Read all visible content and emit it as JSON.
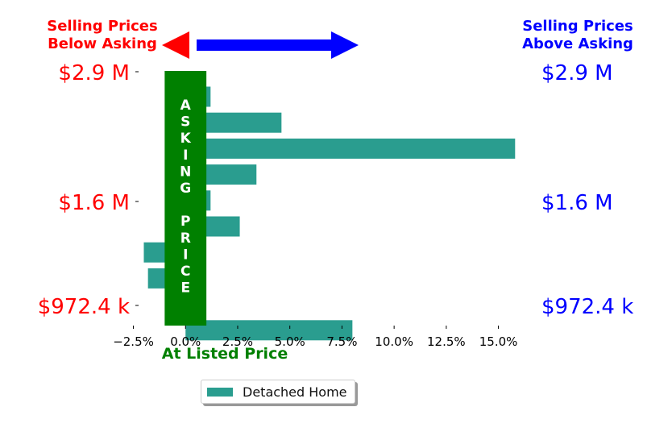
{
  "colors": {
    "bar": "#2a9d8f",
    "asking_band": "#008000",
    "below": "#ff0000",
    "above": "#0000ff",
    "at_listed": "#008000"
  },
  "header": {
    "below_line1": "Selling Prices",
    "below_line2": "Below Asking",
    "above_line1": "Selling Prices",
    "above_line2": "Above Asking"
  },
  "asking_band_label": "ASKING PRICE",
  "at_listed_label": "At Listed Price",
  "legend": {
    "label": "Detached Home"
  },
  "chart_data": {
    "type": "bar",
    "orientation": "horizontal",
    "x_ticks": [
      -2.5,
      0.0,
      2.5,
      5.0,
      7.5,
      10.0,
      12.5,
      15.0
    ],
    "x_tick_labels": [
      "−2.5%",
      "0.0%",
      "2.5%",
      "5.0%",
      "7.5%",
      "10.0%",
      "12.5%",
      "15.0%"
    ],
    "xlim": [
      -3.1,
      16.6
    ],
    "asking_band": [
      -1.0,
      1.0
    ],
    "y_labels_left": [
      "$2.9 M",
      "$1.6 M",
      "$972.4 k"
    ],
    "y_labels_right": [
      "$2.9 M",
      "$1.6 M",
      "$972.4 k"
    ],
    "series": [
      {
        "name": "Detached Home",
        "values": [
          1.2,
          4.6,
          15.8,
          3.4,
          1.2,
          2.6,
          -2.0,
          -1.8,
          0.0,
          8.0
        ]
      }
    ]
  }
}
